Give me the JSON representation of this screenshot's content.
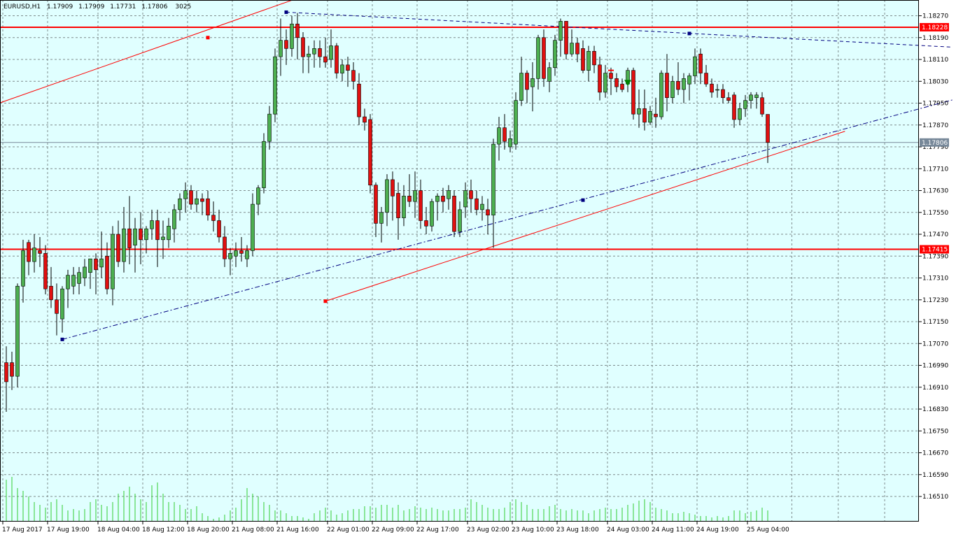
{
  "chart_header": {
    "symbol": "EURUSD,H1",
    "open": "1.17909",
    "high": "1.17909",
    "low": "1.17731",
    "close": "1.17806",
    "volume": "3025"
  },
  "chart_data": {
    "type": "candlestick",
    "title": "EURUSD,H1",
    "xlabel": "",
    "ylabel": "",
    "ylim": [
      1.1644,
      1.1832
    ],
    "grid": true,
    "price_ticks": [
      "1.18270",
      "1.18190",
      "1.18110",
      "1.18030",
      "1.17950",
      "1.17870",
      "1.17790",
      "1.17710",
      "1.17630",
      "1.17550",
      "1.17470",
      "1.17390",
      "1.17310",
      "1.17230",
      "1.17150",
      "1.17070",
      "1.16990",
      "1.16910",
      "1.16830",
      "1.16750",
      "1.16670",
      "1.16590",
      "1.16510"
    ],
    "time_ticks": [
      {
        "label": "17 Aug 2017",
        "bar": 0
      },
      {
        "label": "17 Aug 19:00",
        "bar": 8
      },
      {
        "label": "18 Aug 04:00",
        "bar": 17
      },
      {
        "label": "18 Aug 12:00",
        "bar": 25
      },
      {
        "label": "18 Aug 20:00",
        "bar": 33
      },
      {
        "label": "21 Aug 08:00",
        "bar": 41
      },
      {
        "label": "21 Aug 16:00",
        "bar": 49
      },
      {
        "label": "22 Aug 01:00",
        "bar": 58
      },
      {
        "label": "22 Aug 09:00",
        "bar": 66
      },
      {
        "label": "22 Aug 17:00",
        "bar": 74
      },
      {
        "label": "23 Aug 02:00",
        "bar": 83
      },
      {
        "label": "23 Aug 10:00",
        "bar": 91
      },
      {
        "label": "23 Aug 18:00",
        "bar": 99
      },
      {
        "label": "24 Aug 03:00",
        "bar": 108
      },
      {
        "label": "24 Aug 11:00",
        "bar": 116
      },
      {
        "label": "24 Aug 19:00",
        "bar": 124
      },
      {
        "label": "25 Aug 04:00",
        "bar": 133
      }
    ],
    "candles": [
      [
        1.17,
        1.1706,
        1.1682,
        1.1693
      ],
      [
        1.17,
        1.1704,
        1.169,
        1.1695
      ],
      [
        1.1695,
        1.1729,
        1.1691,
        1.1728
      ],
      [
        1.1728,
        1.1745,
        1.1722,
        1.1741
      ],
      [
        1.1744,
        1.1745,
        1.1732,
        1.1737
      ],
      [
        1.1737,
        1.1747,
        1.1733,
        1.1742
      ],
      [
        1.1741,
        1.1746,
        1.1735,
        1.174
      ],
      [
        1.174,
        1.1743,
        1.1725,
        1.1727
      ],
      [
        1.1728,
        1.1735,
        1.172,
        1.1723
      ],
      [
        1.1723,
        1.1729,
        1.171,
        1.1718
      ],
      [
        1.1716,
        1.1728,
        1.1711,
        1.1727
      ],
      [
        1.1727,
        1.1734,
        1.172,
        1.1732
      ],
      [
        1.1728,
        1.1735,
        1.1725,
        1.1732
      ],
      [
        1.1729,
        1.1735,
        1.1725,
        1.1733
      ],
      [
        1.1731,
        1.1738,
        1.1728,
        1.1735
      ],
      [
        1.1733,
        1.1738,
        1.1727,
        1.1738
      ],
      [
        1.1738,
        1.174,
        1.1725,
        1.1734
      ],
      [
        1.1735,
        1.1748,
        1.1731,
        1.1738
      ],
      [
        1.1739,
        1.1744,
        1.1725,
        1.1727
      ],
      [
        1.1727,
        1.175,
        1.1721,
        1.1747
      ],
      [
        1.1747,
        1.1752,
        1.1735,
        1.1737
      ],
      [
        1.1737,
        1.1757,
        1.1733,
        1.1749
      ],
      [
        1.1749,
        1.1761,
        1.1736,
        1.1742
      ],
      [
        1.1743,
        1.1753,
        1.1733,
        1.1749
      ],
      [
        1.1749,
        1.1755,
        1.1736,
        1.1745
      ],
      [
        1.1745,
        1.175,
        1.174,
        1.1749
      ],
      [
        1.1749,
        1.1756,
        1.1745,
        1.1752
      ],
      [
        1.1752,
        1.1756,
        1.1735,
        1.1745
      ],
      [
        1.1745,
        1.1752,
        1.1738,
        1.1746
      ],
      [
        1.1745,
        1.1753,
        1.1742,
        1.175
      ],
      [
        1.1749,
        1.1758,
        1.1744,
        1.1756
      ],
      [
        1.1756,
        1.1762,
        1.1752,
        1.176
      ],
      [
        1.176,
        1.1766,
        1.1755,
        1.1763
      ],
      [
        1.1763,
        1.1765,
        1.1756,
        1.1758
      ],
      [
        1.1758,
        1.1763,
        1.1755,
        1.176
      ],
      [
        1.176,
        1.1762,
        1.1754,
        1.1759
      ],
      [
        1.176,
        1.1763,
        1.1752,
        1.1754
      ],
      [
        1.1754,
        1.1759,
        1.1748,
        1.1752
      ],
      [
        1.1752,
        1.1756,
        1.1744,
        1.1746
      ],
      [
        1.1746,
        1.175,
        1.1735,
        1.1738
      ],
      [
        1.1738,
        1.1742,
        1.1732,
        1.174
      ],
      [
        1.1739,
        1.1744,
        1.1735,
        1.1741
      ],
      [
        1.1741,
        1.1746,
        1.1737,
        1.174
      ],
      [
        1.1738,
        1.1743,
        1.1735,
        1.1741
      ],
      [
        1.1741,
        1.1762,
        1.1739,
        1.1758
      ],
      [
        1.1758,
        1.1765,
        1.1754,
        1.1764
      ],
      [
        1.1764,
        1.1784,
        1.1762,
        1.1781
      ],
      [
        1.1781,
        1.1794,
        1.1778,
        1.1791
      ],
      [
        1.1791,
        1.1815,
        1.1788,
        1.1812
      ],
      [
        1.1812,
        1.1826,
        1.1805,
        1.1818
      ],
      [
        1.1818,
        1.1822,
        1.1809,
        1.1815
      ],
      [
        1.1815,
        1.1827,
        1.1812,
        1.1824
      ],
      [
        1.1824,
        1.1828,
        1.1811,
        1.1819
      ],
      [
        1.1819,
        1.1821,
        1.1806,
        1.1812
      ],
      [
        1.1812,
        1.1816,
        1.1806,
        1.1813
      ],
      [
        1.1813,
        1.1818,
        1.1808,
        1.1815
      ],
      [
        1.1815,
        1.1818,
        1.1808,
        1.1812
      ],
      [
        1.1812,
        1.1819,
        1.1808,
        1.181
      ],
      [
        1.1811,
        1.1822,
        1.1808,
        1.1816
      ],
      [
        1.1816,
        1.1817,
        1.1804,
        1.1806
      ],
      [
        1.1806,
        1.1811,
        1.1803,
        1.1809
      ],
      [
        1.1809,
        1.1812,
        1.1801,
        1.1807
      ],
      [
        1.1807,
        1.181,
        1.18,
        1.1803
      ],
      [
        1.1802,
        1.1806,
        1.1787,
        1.179
      ],
      [
        1.179,
        1.1793,
        1.1785,
        1.1788
      ],
      [
        1.1789,
        1.1791,
        1.1762,
        1.1765
      ],
      [
        1.1765,
        1.1766,
        1.1746,
        1.1751
      ],
      [
        1.1751,
        1.1757,
        1.1744,
        1.1755
      ],
      [
        1.1755,
        1.1769,
        1.175,
        1.1767
      ],
      [
        1.1767,
        1.177,
        1.1752,
        1.1761
      ],
      [
        1.1762,
        1.1766,
        1.1745,
        1.1753
      ],
      [
        1.1753,
        1.1765,
        1.175,
        1.1761
      ],
      [
        1.1761,
        1.1769,
        1.1757,
        1.1759
      ],
      [
        1.1759,
        1.177,
        1.1753,
        1.1763
      ],
      [
        1.1763,
        1.1767,
        1.1749,
        1.1752
      ],
      [
        1.1752,
        1.1757,
        1.1747,
        1.175
      ],
      [
        1.175,
        1.176,
        1.1748,
        1.1759
      ],
      [
        1.1759,
        1.1762,
        1.1752,
        1.1761
      ],
      [
        1.1761,
        1.1764,
        1.1755,
        1.1759
      ],
      [
        1.176,
        1.1765,
        1.1756,
        1.1763
      ],
      [
        1.1761,
        1.1763,
        1.1746,
        1.1748
      ],
      [
        1.1748,
        1.1759,
        1.1746,
        1.1756
      ],
      [
        1.1757,
        1.1766,
        1.1753,
        1.1763
      ],
      [
        1.1763,
        1.1767,
        1.1755,
        1.176
      ],
      [
        1.176,
        1.1763,
        1.1754,
        1.1756
      ],
      [
        1.1756,
        1.1761,
        1.1752,
        1.1758
      ],
      [
        1.1756,
        1.176,
        1.1747,
        1.1754
      ],
      [
        1.1754,
        1.1782,
        1.1742,
        1.178
      ],
      [
        1.178,
        1.179,
        1.1774,
        1.1786
      ],
      [
        1.1786,
        1.1791,
        1.1778,
        1.1781
      ],
      [
        1.1779,
        1.1785,
        1.1777,
        1.1782
      ],
      [
        1.178,
        1.1799,
        1.1778,
        1.1796
      ],
      [
        1.1796,
        1.1812,
        1.1794,
        1.1806
      ],
      [
        1.1806,
        1.1807,
        1.1795,
        1.18
      ],
      [
        1.1801,
        1.181,
        1.1792,
        1.1804
      ],
      [
        1.1804,
        1.182,
        1.18,
        1.1819
      ],
      [
        1.1819,
        1.1822,
        1.1801,
        1.1804
      ],
      [
        1.1803,
        1.181,
        1.1799,
        1.1808
      ],
      [
        1.1808,
        1.182,
        1.1805,
        1.1818
      ],
      [
        1.1818,
        1.1826,
        1.1812,
        1.1825
      ],
      [
        1.1825,
        1.1825,
        1.1811,
        1.1813
      ],
      [
        1.1813,
        1.1822,
        1.1812,
        1.1817
      ],
      [
        1.1817,
        1.1819,
        1.181,
        1.1813
      ],
      [
        1.1815,
        1.1818,
        1.1806,
        1.1807
      ],
      [
        1.1807,
        1.1816,
        1.1803,
        1.1814
      ],
      [
        1.1814,
        1.1816,
        1.1806,
        1.1809
      ],
      [
        1.1809,
        1.1812,
        1.1796,
        1.1799
      ],
      [
        1.1799,
        1.1809,
        1.1797,
        1.1806
      ],
      [
        1.1806,
        1.1808,
        1.1798,
        1.1804
      ],
      [
        1.1804,
        1.1806,
        1.1799,
        1.1801
      ],
      [
        1.1802,
        1.1804,
        1.1799,
        1.18
      ],
      [
        1.1802,
        1.1808,
        1.1799,
        1.1807
      ],
      [
        1.1807,
        1.1808,
        1.1789,
        1.1791
      ],
      [
        1.1791,
        1.18,
        1.1786,
        1.1793
      ],
      [
        1.1793,
        1.18,
        1.1785,
        1.1788
      ],
      [
        1.1788,
        1.1794,
        1.1787,
        1.1792
      ],
      [
        1.1791,
        1.1797,
        1.1786,
        1.179
      ],
      [
        1.179,
        1.1807,
        1.1789,
        1.1806
      ],
      [
        1.1806,
        1.1813,
        1.1792,
        1.1797
      ],
      [
        1.1797,
        1.1805,
        1.1795,
        1.1803
      ],
      [
        1.1803,
        1.181,
        1.1798,
        1.18
      ],
      [
        1.18,
        1.1806,
        1.1795,
        1.1804
      ],
      [
        1.1802,
        1.1806,
        1.1796,
        1.1805
      ],
      [
        1.1805,
        1.1815,
        1.1802,
        1.1812
      ],
      [
        1.1813,
        1.1815,
        1.1802,
        1.1806
      ],
      [
        1.1806,
        1.1809,
        1.1801,
        1.1802
      ],
      [
        1.1802,
        1.1804,
        1.1797,
        1.1799
      ],
      [
        1.18,
        1.1802,
        1.1797,
        1.18
      ],
      [
        1.18,
        1.1802,
        1.1795,
        1.1797
      ],
      [
        1.1797,
        1.1799,
        1.1795,
        1.1796
      ],
      [
        1.1798,
        1.1799,
        1.1786,
        1.1789
      ],
      [
        1.1789,
        1.1795,
        1.1787,
        1.1793
      ],
      [
        1.1793,
        1.1798,
        1.179,
        1.1796
      ],
      [
        1.1796,
        1.1799,
        1.1793,
        1.1798
      ],
      [
        1.1797,
        1.1799,
        1.1793,
        1.1798
      ],
      [
        1.1797,
        1.1799,
        1.179,
        1.1791
      ],
      [
        1.17909,
        1.17909,
        1.17731,
        1.17806
      ]
    ],
    "volumes": [
      1650,
      1660,
      1620,
      1610,
      1590,
      1570,
      1560,
      1550,
      1570,
      1580,
      1560,
      1540,
      1545,
      1540,
      1545,
      1570,
      1580,
      1560,
      1555,
      1570,
      1600,
      1610,
      1625,
      1600,
      1580,
      1570,
      1630,
      1640,
      1600,
      1570,
      1570,
      1560,
      1545,
      1545,
      1555,
      1530,
      1520,
      1510,
      1515,
      1525,
      1540,
      1550,
      1580,
      1620,
      1600,
      1590,
      1570,
      1560,
      1540,
      1540,
      1530,
      1520,
      1520,
      1515,
      1510,
      1530,
      1540,
      1550,
      1540,
      1525,
      1530,
      1540,
      1545,
      1545,
      1555,
      1555,
      1550,
      1560,
      1560,
      1550,
      1560,
      1540,
      1545,
      1555,
      1550,
      1545,
      1550,
      1545,
      1540,
      1540,
      1545,
      1545,
      1550,
      1580,
      1570,
      1560,
      1550,
      1545,
      1545,
      1550,
      1570,
      1580,
      1570,
      1560,
      1545,
      1545,
      1545,
      1555,
      1560,
      1545,
      1540,
      1545,
      1540,
      1540,
      1530,
      1540,
      1545,
      1550,
      1545,
      1545,
      1550,
      1560,
      1565,
      1575,
      1580,
      1570,
      1550,
      1545,
      1540,
      1530,
      1530,
      1535,
      1530,
      1525,
      1520,
      1520,
      1515,
      1520,
      1515,
      1520,
      1540,
      1540,
      1530,
      1535,
      1540,
      1550,
      1540
    ],
    "horizontal_levels": [
      {
        "price": "1.18228",
        "color": "#ff0000"
      },
      {
        "price": "1.17415",
        "color": "#ff0000"
      }
    ],
    "current_price": "1.17806",
    "trend_lines": [
      {
        "style": "solid",
        "color": "#ff0000",
        "from": {
          "bar": -1.3,
          "price": 1.1795
        },
        "to": {
          "bar": 57,
          "price": 1.1837
        }
      },
      {
        "style": "solid",
        "color": "#ff0000",
        "from": {
          "bar": 57,
          "price": 1.17225
        },
        "to": {
          "bar": 149.8,
          "price": 1.17847
        }
      },
      {
        "style": "dashdot",
        "color": "#000080",
        "from": {
          "bar": 10,
          "price": 1.17085
        },
        "to": {
          "bar": 169,
          "price": 1.17962
        }
      },
      {
        "style": "dashed",
        "color": "#000080",
        "from": {
          "bar": 50,
          "price": 1.18283
        },
        "to": {
          "bar": 169,
          "price": 1.18155
        }
      }
    ],
    "markers": [
      {
        "shape": "square",
        "color": "#ff0000",
        "bar": 36,
        "price": 1.1819
      },
      {
        "shape": "square",
        "color": "#ff0000",
        "bar": 57,
        "price": 1.17225
      },
      {
        "shape": "square",
        "color": "#000080",
        "bar": 50,
        "price": 1.18283
      },
      {
        "shape": "square",
        "color": "#000080",
        "bar": 10,
        "price": 1.17085
      },
      {
        "shape": "square",
        "color": "#000080",
        "bar": 103,
        "price": 1.17595
      },
      {
        "shape": "square",
        "color": "#000080",
        "bar": 122,
        "price": 1.18205
      },
      {
        "shape": "arrow-down",
        "color": "#008000",
        "bar": 111,
        "price": 1.1802
      },
      {
        "shape": "dash",
        "color": "#ff0000",
        "bar": 108,
        "price": 1.1807
      }
    ]
  },
  "colors": {
    "background": "#e0ffff",
    "frame": "#000000",
    "grid": "#7f8c8d",
    "bull_body": "#4caf50",
    "bear_body": "#e01010",
    "wick": "#000000",
    "volume": "#32cd32",
    "level_tag": "#ff0000",
    "price_tag": "#778899"
  }
}
